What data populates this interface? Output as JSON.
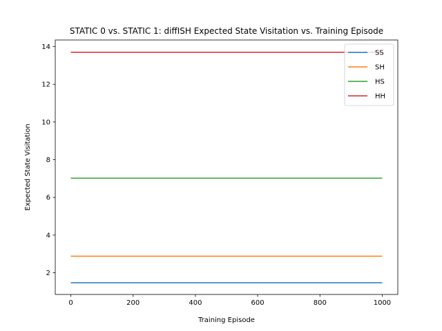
{
  "chart_data": {
    "type": "line",
    "title": "STATIC 0 vs. STATIC 1: diffISH Expected State Visitation vs. Training Episode",
    "xlabel": "Training Episode",
    "ylabel": "Expected State Visitation",
    "xlim": [
      -50,
      1050
    ],
    "ylim": [
      0.85,
      14.35
    ],
    "xticks": [
      0,
      200,
      400,
      600,
      800,
      1000
    ],
    "yticks": [
      2,
      4,
      6,
      8,
      10,
      12,
      14
    ],
    "grid": false,
    "legend_position": "top-right",
    "x": [
      0,
      1000
    ],
    "series": [
      {
        "name": "SS",
        "color": "#1f77b4",
        "values": [
          1.47,
          1.47
        ]
      },
      {
        "name": "SH",
        "color": "#ff7f0e",
        "values": [
          2.88,
          2.88
        ]
      },
      {
        "name": "HS",
        "color": "#2ca02c",
        "values": [
          7.02,
          7.02
        ]
      },
      {
        "name": "HH",
        "color": "#d62728",
        "values": [
          13.7,
          13.7
        ]
      }
    ]
  }
}
